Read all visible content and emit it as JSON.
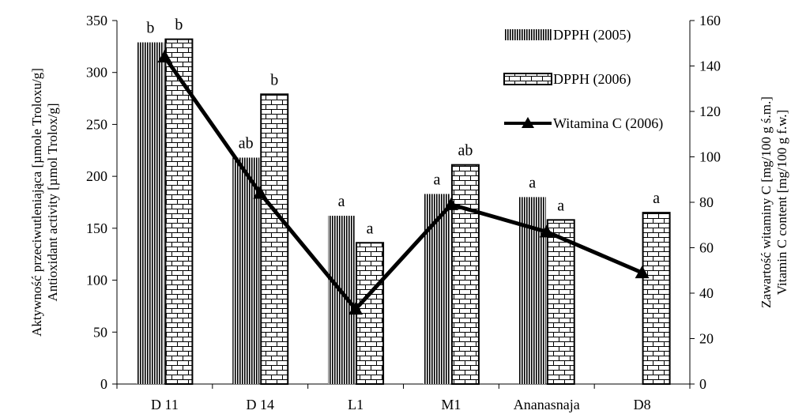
{
  "chart_data": {
    "type": "bar",
    "categories": [
      "D 11",
      "D 14",
      "L1",
      "M1",
      "Ananasnaja",
      "D8"
    ],
    "series": [
      {
        "name": "DPPH (2005)",
        "kind": "bar",
        "axis": "left",
        "pattern": "vertical-lines",
        "values": [
          329,
          218,
          162,
          183,
          180,
          null
        ],
        "letters": [
          "b",
          "ab",
          "a",
          "a",
          "a",
          ""
        ]
      },
      {
        "name": "DPPH (2006)",
        "kind": "bar",
        "axis": "left",
        "pattern": "bricks",
        "values": [
          332,
          279,
          136,
          211,
          158,
          165
        ],
        "letters": [
          "b",
          "b",
          "a",
          "ab",
          "a",
          "a"
        ]
      },
      {
        "name": "Witamina C (2006)",
        "kind": "line",
        "axis": "right",
        "marker": "triangle",
        "values": [
          144,
          84,
          33,
          79,
          67,
          49
        ]
      }
    ],
    "ylabel_left": [
      "Aktywność przeciwutleniająca [µmole Troloxu/g]",
      "Antioxidant activity [µmol Trolox/g]"
    ],
    "ylabel_right": [
      "Zawartość witaminy C [mg/100 g ś.m.]",
      "Vitamin C content [mg/100 g f.w.]"
    ],
    "ylim_left": [
      0,
      350
    ],
    "yticks_left": [
      0,
      50,
      100,
      150,
      200,
      250,
      300,
      350
    ],
    "ylim_right": [
      0,
      160
    ],
    "yticks_right": [
      0,
      20,
      40,
      60,
      80,
      100,
      120,
      140,
      160
    ],
    "grid": false,
    "legend_position": "top-right"
  }
}
